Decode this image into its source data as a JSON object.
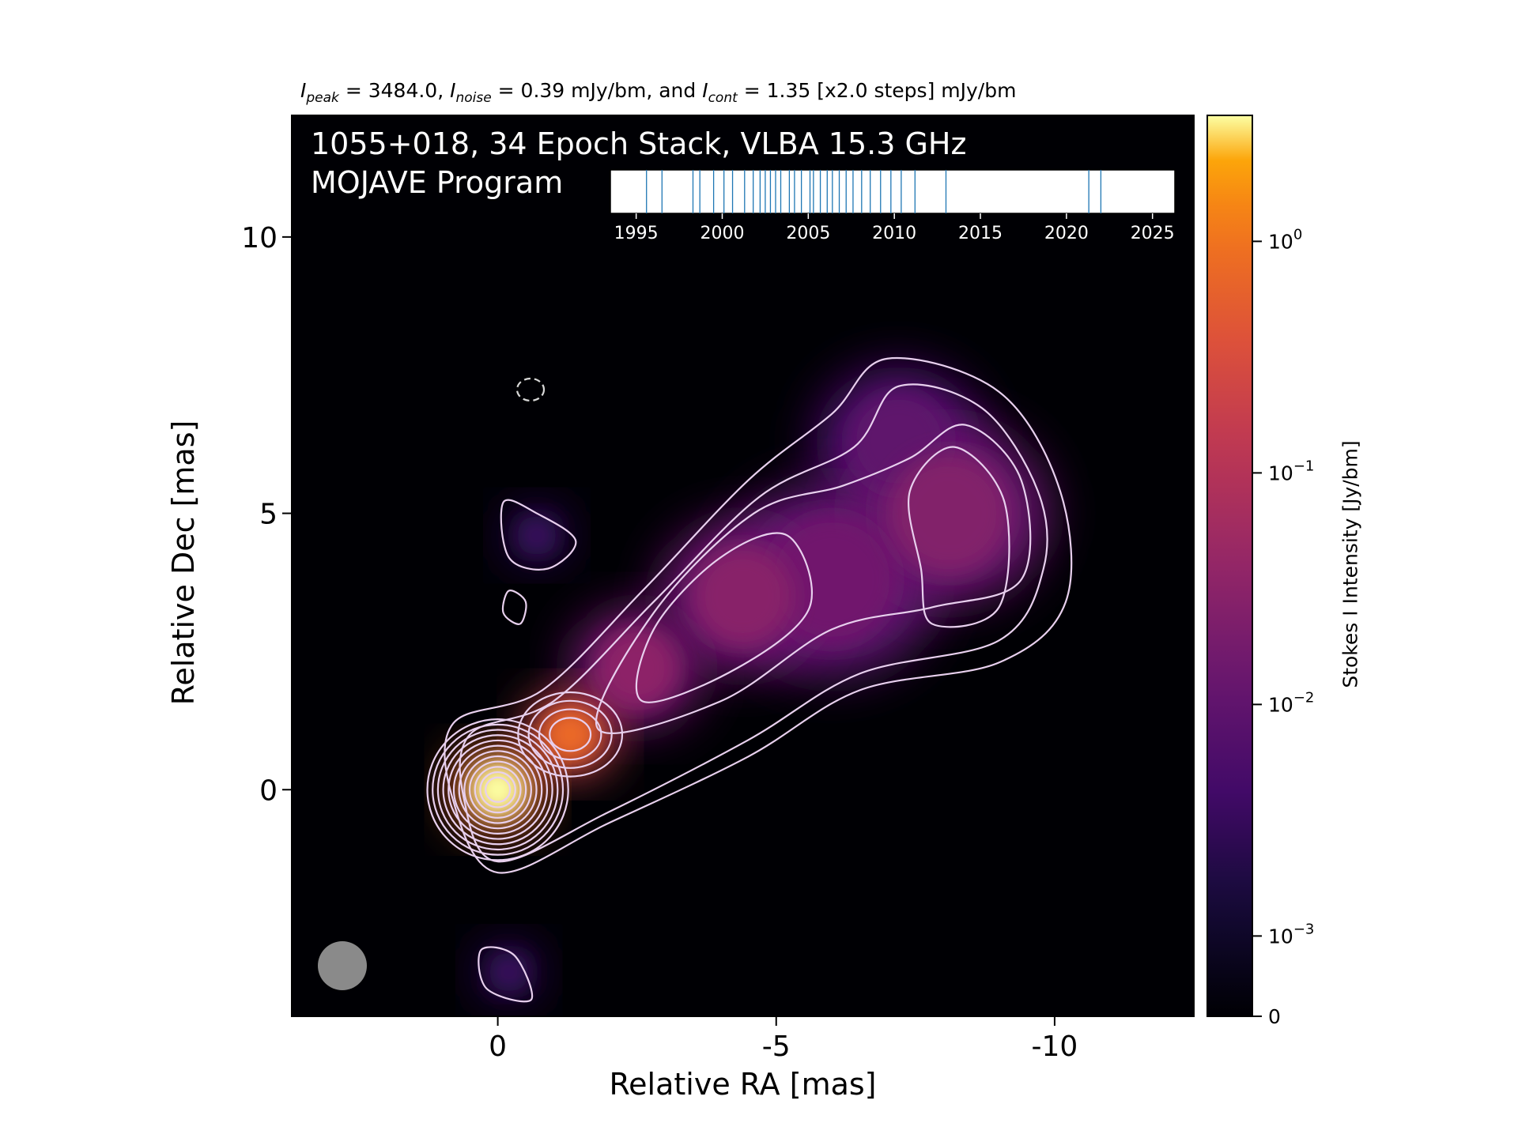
{
  "header": {
    "peak_label": "I",
    "peak_sub": "peak",
    "peak_text": " = 3484.0, ",
    "noise_label": "I",
    "noise_sub": "noise",
    "noise_text": " = 0.39 mJy/bm, and ",
    "cont_label": "I",
    "cont_sub": "cont",
    "cont_text": " = 1.35 [x2.0 steps] mJy/bm"
  },
  "plot_title": {
    "line1": "1055+018, 34 Epoch Stack, VLBA 15.3 GHz",
    "line2": "MOJAVE Program"
  },
  "colors": {
    "background": "#000004",
    "contour": "#e8d0ee",
    "negative_contour": "#d8d8d8",
    "beam": "#8a8a8a",
    "epoch_lines": "#1f77b4"
  },
  "chart_data": [
    {
      "type": "heatmap",
      "colormap": "inferno",
      "xlabel": "Relative RA [mas]",
      "ylabel": "Relative Dec [mas]",
      "xlim": [
        3.7,
        -12.5
      ],
      "ylim": [
        -4.1,
        12.2
      ],
      "x_ticks": [
        0,
        -5,
        -10
      ],
      "x_tick_labels": [
        "0",
        "-5",
        "-10"
      ],
      "y_ticks": [
        0,
        5,
        10
      ],
      "y_tick_labels": [
        "0",
        "5",
        "10"
      ],
      "grid": false,
      "components": [
        {
          "x": 0.0,
          "y": 0.0,
          "peak_jy": 3.484,
          "size": 0.55
        },
        {
          "x": -1.3,
          "y": 1.0,
          "peak_jy": 0.75,
          "size": 0.55
        },
        {
          "x": -2.5,
          "y": 2.2,
          "peak_jy": 0.032,
          "size": 0.8
        },
        {
          "x": -4.4,
          "y": 3.5,
          "peak_jy": 0.028,
          "size": 1.0
        },
        {
          "x": -6.0,
          "y": 3.8,
          "peak_jy": 0.015,
          "size": 1.3
        },
        {
          "x": -8.1,
          "y": 5.0,
          "peak_jy": 0.024,
          "size": 1.2
        },
        {
          "x": -7.2,
          "y": 6.3,
          "peak_jy": 0.009,
          "size": 1.0
        },
        {
          "x": -0.7,
          "y": 4.6,
          "peak_jy": 0.003,
          "size": 0.4
        },
        {
          "x": -0.2,
          "y": -3.3,
          "peak_jy": 0.003,
          "size": 0.4
        }
      ],
      "contour_base_mjy": 1.35,
      "contour_step": 2.0,
      "n_contours": 12,
      "beam": {
        "x": 2.8,
        "y": -3.2,
        "diameter_mas": 0.9
      }
    },
    {
      "type": "colorbar",
      "label": "Stokes I Intensity [Jy/bm]",
      "scale": "log",
      "ticks": [
        0,
        0.001,
        0.01,
        0.1,
        1
      ],
      "tick_labels": [
        {
          "base": "0",
          "exp": ""
        },
        {
          "base": "10",
          "exp": "−3"
        },
        {
          "base": "10",
          "exp": "−2"
        },
        {
          "base": "10",
          "exp": "−1"
        },
        {
          "base": "10",
          "exp": "0"
        }
      ]
    },
    {
      "type": "timeline",
      "xlim": [
        1993.5,
        2026.3
      ],
      "x_ticks": [
        1995,
        2000,
        2005,
        2010,
        2015,
        2020,
        2025
      ],
      "x_tick_labels": [
        "1995",
        "2000",
        "2005",
        "2010",
        "2015",
        "2020",
        "2025"
      ],
      "epochs": [
        1995.6,
        1996.5,
        1998.3,
        1998.7,
        1999.5,
        2000.1,
        2000.6,
        2001.3,
        2001.8,
        2002.2,
        2002.5,
        2002.8,
        2003.1,
        2003.4,
        2003.9,
        2004.2,
        2004.6,
        2005.1,
        2005.3,
        2005.7,
        2006.1,
        2006.4,
        2006.8,
        2007.2,
        2007.6,
        2008.1,
        2008.6,
        2009.2,
        2009.8,
        2010.4,
        2011.2,
        2013.0,
        2021.3,
        2022.0
      ]
    }
  ]
}
